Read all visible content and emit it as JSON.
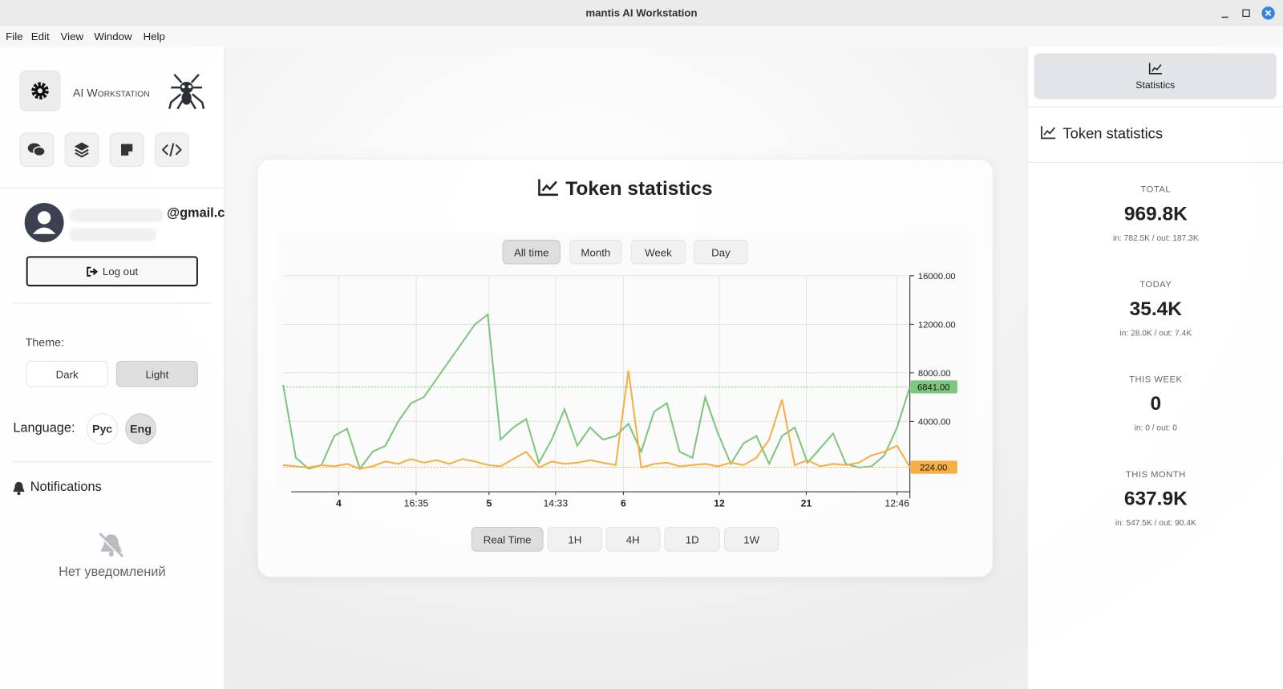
{
  "window": {
    "title": "mantis AI Workstation"
  },
  "menu": [
    "File",
    "Edit",
    "View",
    "Window",
    "Help"
  ],
  "sidebar": {
    "brand": "AI Workstation",
    "email": "@gmail.c",
    "logout": "Log out",
    "theme_label": "Theme:",
    "themes": [
      "Dark",
      "Light"
    ],
    "language_label": "Language:",
    "languages": [
      "Рус",
      "Eng"
    ],
    "notifications_title": "Notifications",
    "notifications_empty": "Нет уведомлений"
  },
  "main": {
    "title": "Token statistics",
    "ranges": [
      "All time",
      "Month",
      "Week",
      "Day"
    ],
    "intervals": [
      "Real Time",
      "1H",
      "4H",
      "1D",
      "1W"
    ],
    "chart_data": {
      "type": "line",
      "grid": true,
      "xlim": [
        0,
        49
      ],
      "xticks": [
        {
          "value": 4.35,
          "label": "4"
        },
        {
          "value": 10.4,
          "label": "16:35"
        },
        {
          "value": 16.1,
          "label": "5"
        },
        {
          "value": 21.3,
          "label": "14:33"
        },
        {
          "value": 26.6,
          "label": "6"
        },
        {
          "value": 34.1,
          "label": "12"
        },
        {
          "value": 40.9,
          "label": "21"
        },
        {
          "value": 48,
          "label": "12:46"
        }
      ],
      "ylim": [
        -1800,
        16000
      ],
      "yticks": [
        {
          "value": 16000,
          "label": "16000.00"
        },
        {
          "value": 12000,
          "label": "12000.00"
        },
        {
          "value": 8000,
          "label": "8000.00"
        },
        {
          "value": 4000,
          "label": "4000.00"
        }
      ],
      "series": [
        {
          "color": "#7dc67e",
          "last_value_label": "6841.00",
          "values": [
            7000,
            1000,
            100,
            400,
            2800,
            3400,
            100,
            1500,
            2000,
            4000,
            5500,
            6000,
            7500,
            9000,
            10500,
            12000,
            12800,
            2500,
            3500,
            4200,
            600,
            2500,
            5000,
            2000,
            3500,
            2500,
            2800,
            3800,
            1500,
            4800,
            5500,
            1500,
            1000,
            6000,
            3000,
            500,
            2200,
            2800,
            500,
            2800,
            3500,
            600,
            1800,
            3000,
            500,
            200,
            300,
            1200,
            3500,
            6841
          ]
        },
        {
          "color": "#f5b041",
          "last_value_label": "224.00",
          "values": [
            400,
            300,
            200,
            400,
            300,
            500,
            100,
            300,
            700,
            500,
            900,
            600,
            800,
            500,
            900,
            700,
            400,
            300,
            900,
            1500,
            200,
            700,
            500,
            600,
            800,
            600,
            400,
            8200,
            200,
            500,
            600,
            300,
            400,
            500,
            300,
            600,
            400,
            1000,
            2500,
            5800,
            400,
            800,
            300,
            500,
            400,
            600,
            1200,
            1500,
            2000,
            224
          ]
        }
      ]
    }
  },
  "stats_panel": {
    "tab": "Statistics",
    "title": "Token statistics",
    "items": [
      {
        "label": "TOTAL",
        "value": "969.8K",
        "detail": "in: 782.5K / out: 187.3K"
      },
      {
        "label": "TODAY",
        "value": "35.4K",
        "detail": "in: 28.0K / out: 7.4K"
      },
      {
        "label": "THIS WEEK",
        "value": "0",
        "detail": "in: 0 / out: 0"
      },
      {
        "label": "THIS MONTH",
        "value": "637.9K",
        "detail": "in: 547.5K / out: 90.4K"
      }
    ]
  }
}
